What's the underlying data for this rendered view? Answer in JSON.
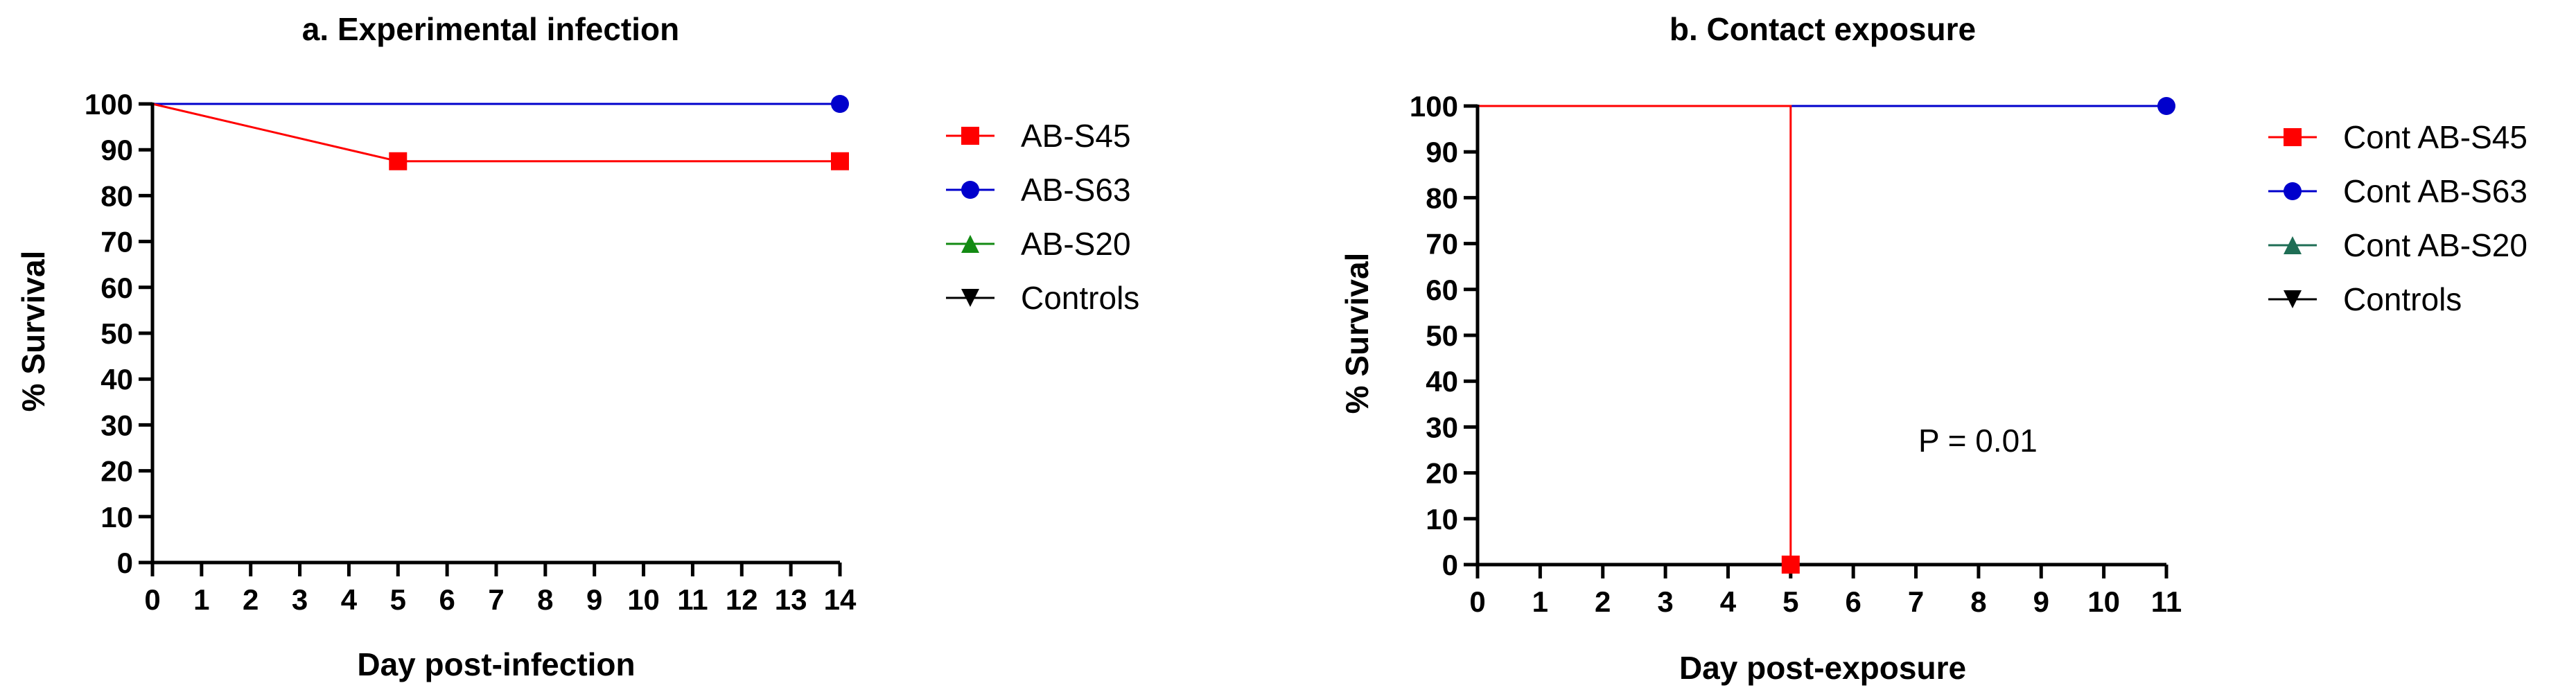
{
  "chart_data": [
    {
      "type": "line",
      "subtype": "survival-step",
      "title": "a. Experimental infection",
      "xlabel": "Day post-infection",
      "ylabel": "% Survival",
      "xlim": [
        0,
        14
      ],
      "ylim": [
        0,
        100
      ],
      "xticks": [
        0,
        1,
        2,
        3,
        4,
        5,
        6,
        7,
        8,
        9,
        10,
        11,
        12,
        13,
        14
      ],
      "yticks": [
        0,
        10,
        20,
        30,
        40,
        50,
        60,
        70,
        80,
        90,
        100
      ],
      "grid": false,
      "legend_position": "right",
      "series": [
        {
          "name": "AB-S45",
          "color": "#ff0000",
          "marker": "square",
          "points": [
            [
              0,
              100
            ],
            [
              5,
              87.5
            ],
            [
              14,
              87.5
            ]
          ],
          "marked": [
            [
              5,
              87.5
            ],
            [
              14,
              87.5
            ]
          ]
        },
        {
          "name": "AB-S63",
          "color": "#0000cc",
          "marker": "circle",
          "points": [
            [
              0,
              100
            ],
            [
              14,
              100
            ]
          ],
          "marked": [
            [
              14,
              100
            ]
          ]
        },
        {
          "name": "AB-S20",
          "color": "#138a13",
          "marker": "triangle-up",
          "points": [
            [
              0,
              100
            ],
            [
              14,
              100
            ]
          ],
          "marked": []
        },
        {
          "name": "Controls",
          "color": "#000000",
          "marker": "triangle-down",
          "points": [
            [
              0,
              100
            ],
            [
              14,
              100
            ]
          ],
          "marked": []
        }
      ]
    },
    {
      "type": "line",
      "subtype": "survival-step",
      "title": "b. Contact exposure",
      "xlabel": "Day post-exposure",
      "ylabel": "% Survival",
      "xlim": [
        0,
        11
      ],
      "ylim": [
        0,
        100
      ],
      "xticks": [
        0,
        1,
        2,
        3,
        4,
        5,
        6,
        7,
        8,
        9,
        10,
        11
      ],
      "yticks": [
        0,
        10,
        20,
        30,
        40,
        50,
        60,
        70,
        80,
        90,
        100
      ],
      "grid": false,
      "legend_position": "right",
      "annotation": "P = 0.01",
      "series": [
        {
          "name": "Cont AB-S45",
          "color": "#ff0000",
          "marker": "square",
          "points": [
            [
              0,
              100
            ],
            [
              5,
              100
            ],
            [
              5,
              0
            ],
            [
              11,
              0
            ]
          ],
          "marked": [
            [
              5,
              0
            ]
          ]
        },
        {
          "name": "Cont AB-S63",
          "color": "#0000cc",
          "marker": "circle",
          "points": [
            [
              0,
              100
            ],
            [
              11,
              100
            ]
          ],
          "marked": [
            [
              11,
              100
            ]
          ]
        },
        {
          "name": "Cont AB-S20",
          "color": "#1f6e55",
          "marker": "triangle-up",
          "points": [
            [
              0,
              100
            ],
            [
              11,
              100
            ]
          ],
          "marked": []
        },
        {
          "name": "Controls",
          "color": "#000000",
          "marker": "triangle-down",
          "points": [
            [
              0,
              100
            ],
            [
              11,
              100
            ]
          ],
          "marked": []
        }
      ]
    }
  ]
}
